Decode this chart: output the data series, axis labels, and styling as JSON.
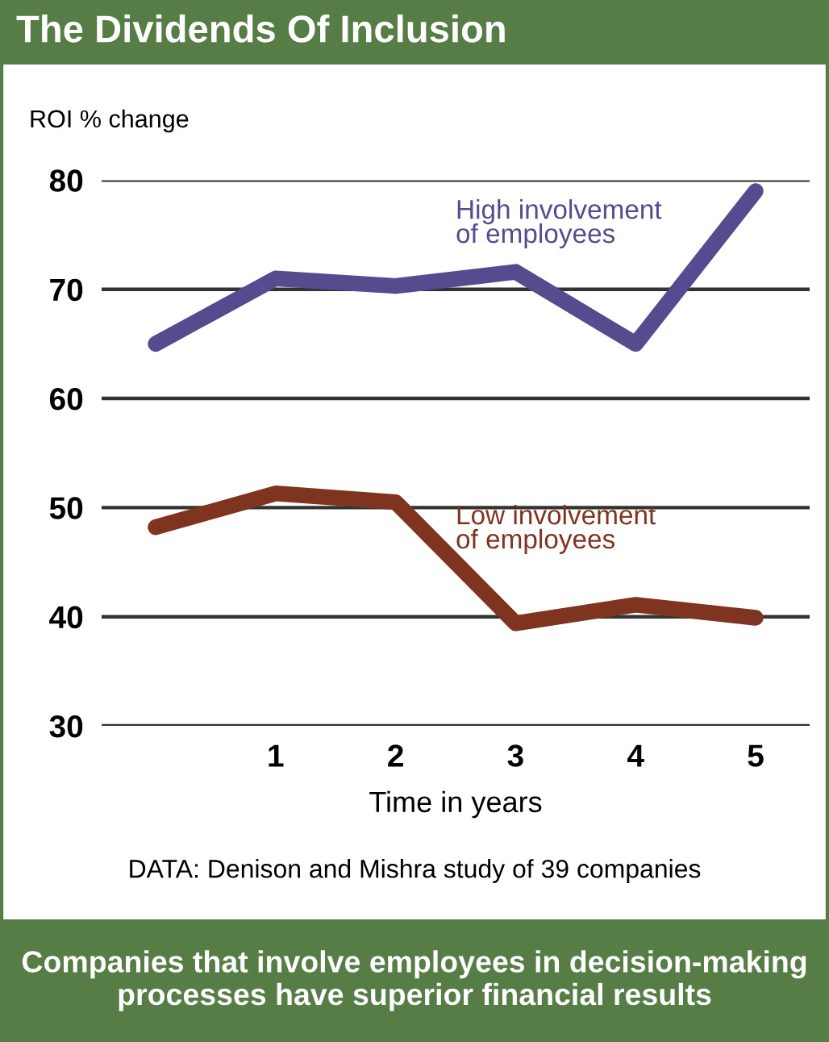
{
  "chart_data": {
    "type": "line",
    "title": "The Dividends Of Inclusion",
    "ylabel": "ROI % change",
    "xlabel": "Time in years",
    "x": [
      0,
      1,
      2,
      3,
      4,
      5
    ],
    "series": [
      {
        "name": "High involvement\nof employees",
        "color": "#574a8e",
        "values": [
          65,
          71,
          70.3,
          71.6,
          65,
          79
        ]
      },
      {
        "name": "Low involvement\nof employees",
        "color": "#7f3420",
        "values": [
          48.2,
          51.3,
          50.5,
          39.4,
          41.1,
          39.9
        ]
      }
    ],
    "xlim": [
      -0.45,
      5.45
    ],
    "xticks": [
      1,
      2,
      3,
      4,
      5
    ],
    "ylim": [
      30,
      80
    ],
    "yticks": [
      30,
      40,
      50,
      60,
      70,
      80
    ],
    "grid": "y",
    "annotations": [
      "DATA: Denison and Mishra study of 39 companies",
      "Companies that involve employees in decision-making processes have superior financial results"
    ]
  }
}
